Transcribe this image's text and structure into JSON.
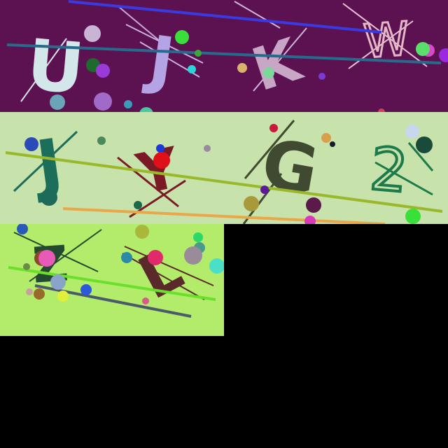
{
  "tiles": [
    {
      "background": "#5c1150",
      "characters": [
        {
          "text": "U",
          "color": "#d3e6ea"
        },
        {
          "text": "J",
          "color": "#b4a4e6"
        },
        {
          "text": "K",
          "color": "#c8a7c6"
        },
        {
          "text": "W",
          "color": "#e4b7c6"
        }
      ]
    },
    {
      "background": "#c8e2ac",
      "characters": [
        {
          "text": "J",
          "color": "#1a6e5a"
        },
        {
          "text": "Y",
          "color": "#7a1a24"
        },
        {
          "text": "G",
          "color": "#3f4a30"
        },
        {
          "text": "2",
          "color": "#1d7a4a"
        }
      ]
    },
    {
      "background": "#b2ec6a",
      "characters": [
        {
          "text": "Z",
          "color": "#234a2e"
        },
        {
          "text": "L",
          "color": "#5a2a2a"
        }
      ]
    }
  ]
}
